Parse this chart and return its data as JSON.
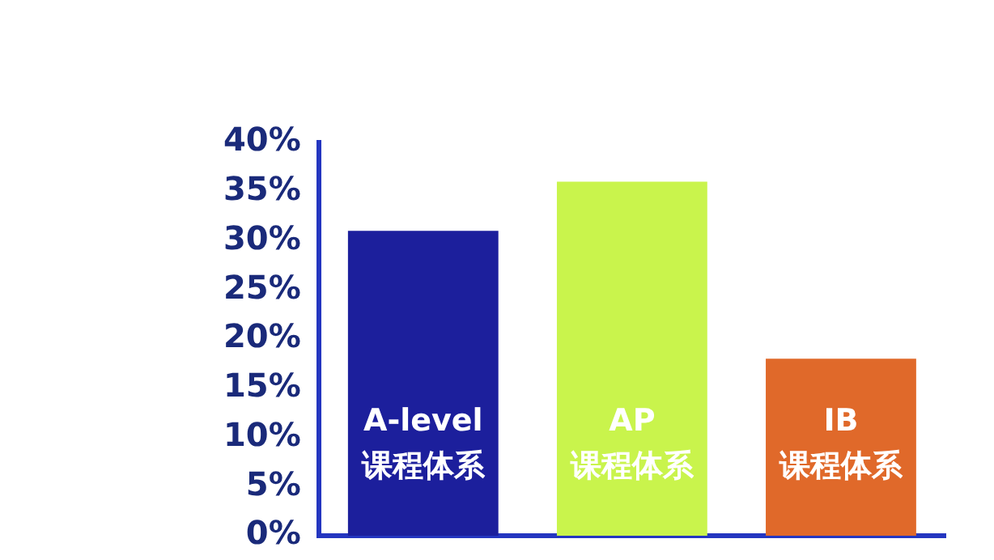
{
  "chart_data": {
    "type": "bar",
    "categories": [
      "A-level\n课程体系",
      "AP\n课程体系",
      "IB\n课程体系"
    ],
    "values": [
      31,
      36,
      18
    ],
    "colors": [
      "#1c1f9c",
      "#c9f44c",
      "#e0692a"
    ],
    "ylim": [
      0,
      40
    ],
    "yticks": [
      {
        "value": 0,
        "label": "0%"
      },
      {
        "value": 5,
        "label": "5%"
      },
      {
        "value": 10,
        "label": "10%"
      },
      {
        "value": 15,
        "label": "15%"
      },
      {
        "value": 20,
        "label": "20%"
      },
      {
        "value": 25,
        "label": "25%"
      },
      {
        "value": 30,
        "label": "30%"
      },
      {
        "value": 35,
        "label": "35%"
      },
      {
        "value": 40,
        "label": "40%"
      }
    ],
    "grid": false,
    "legend": false
  }
}
